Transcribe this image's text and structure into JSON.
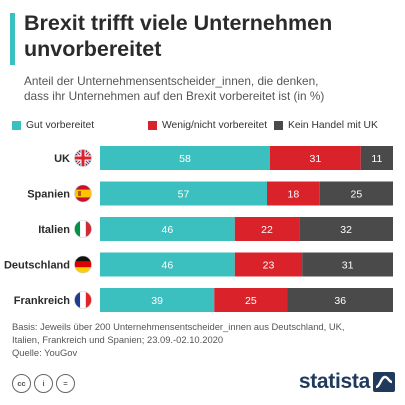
{
  "title": {
    "line1": "Brexit trifft viele Unternehmen",
    "line2": "unvorbereitet"
  },
  "subtitle": {
    "line1": "Anteil der Unternehmensentscheider_innen, die denken,",
    "line2": "dass ihr Unternehmen auf den Brexit vorbereitet ist (in %)"
  },
  "colors": {
    "accent": "#3cbfbf",
    "prepared": "#3cbfbf",
    "unprepared": "#d9222a",
    "nodeal": "#4a4a4a"
  },
  "chart_data": {
    "type": "bar",
    "orientation": "horizontal",
    "stacked": true,
    "categories": [
      "UK",
      "Spanien",
      "Italien",
      "Deutschland",
      "Frankreich"
    ],
    "flags": [
      "uk-flag-icon",
      "spain-flag-icon",
      "italy-flag-icon",
      "germany-flag-icon",
      "france-flag-icon"
    ],
    "series": [
      {
        "name": "Gut vorbereitet",
        "color": "#3cbfbf",
        "values": [
          58,
          57,
          46,
          46,
          39
        ]
      },
      {
        "name": "Wenig/nicht vorbereitet",
        "color": "#d9222a",
        "values": [
          31,
          18,
          22,
          23,
          25
        ]
      },
      {
        "name": "Kein Handel mit UK",
        "color": "#4a4a4a",
        "values": [
          11,
          25,
          32,
          31,
          36
        ]
      }
    ],
    "xlim": [
      0,
      100
    ],
    "grid": false,
    "legend_position": "top"
  },
  "footnote": {
    "line1": "Basis: Jeweils über 200 Unternehmensentscheider_innen aus Deutschland, UK,",
    "line2": "Italien, Frankreich und Spanien; 23.09.-02.10.2020",
    "line3": "Quelle: YouGov"
  },
  "license": [
    "cc",
    "i",
    "="
  ],
  "brand": "statista"
}
